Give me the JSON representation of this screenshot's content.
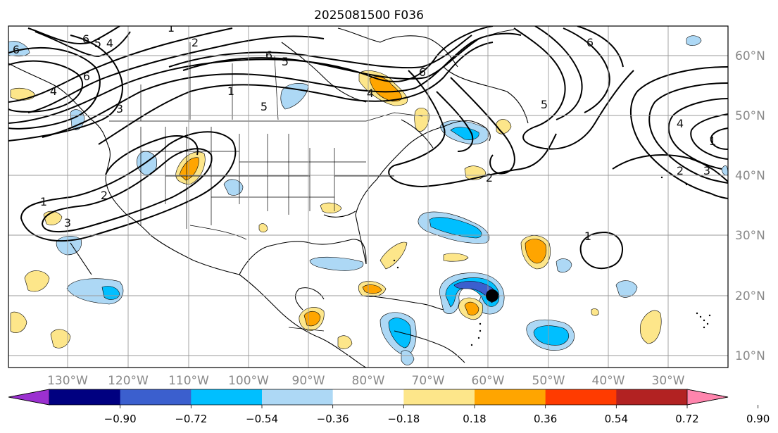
{
  "title": "2025081500 F036",
  "map": {
    "lon_range": [
      -140,
      -21
    ],
    "lat_range": [
      8,
      65
    ],
    "lon_ticks": [
      "130°W",
      "120°W",
      "110°W",
      "100°W",
      "90°W",
      "80°W",
      "70°W",
      "60°W",
      "50°W",
      "40°W",
      "30°W"
    ],
    "lat_ticks": [
      "10°N",
      "20°N",
      "30°N",
      "40°N",
      "50°N",
      "60°N"
    ],
    "gridlines": true,
    "storm_marker": {
      "lon": -60,
      "lat": 20
    }
  },
  "contours": {
    "labels": [
      "1",
      "2",
      "6",
      "5",
      "4",
      "6",
      "5",
      "6",
      "1",
      "5",
      "6",
      "6",
      "1",
      "2",
      "3",
      "4",
      "2",
      "1",
      "2",
      "3",
      "4",
      "1",
      "6",
      "5",
      "3",
      "4"
    ]
  },
  "colorbar": {
    "ticks": [
      "−0.90",
      "−0.72",
      "−0.54",
      "−0.36",
      "−0.18",
      "0.18",
      "0.36",
      "0.54",
      "0.72",
      "0.90"
    ],
    "colors": [
      "#9b30d0",
      "#000080",
      "#3b5fce",
      "#00bfff",
      "#add8f5",
      "#ffffff",
      "#fde68a",
      "#ffa500",
      "#ff3b00",
      "#b22222",
      "#ff85ad"
    ]
  }
}
